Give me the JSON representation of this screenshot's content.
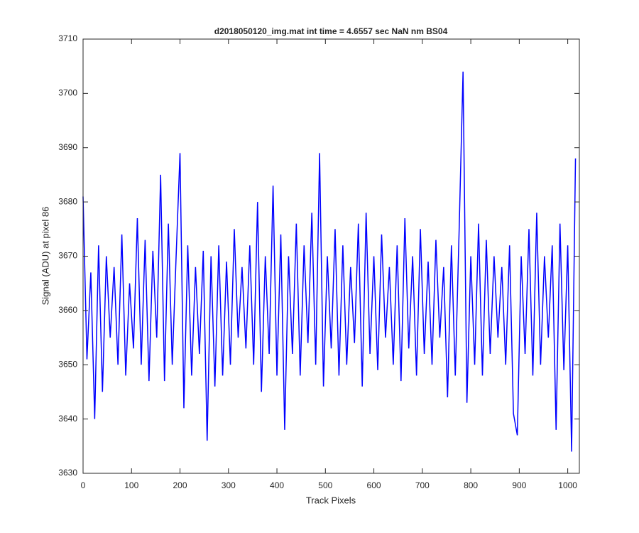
{
  "chart_data": {
    "type": "line",
    "title": "d2018050120_img.mat int time = 4.6557 sec  NaN nm BS04",
    "xlabel": "Track Pixels",
    "ylabel": "Signal (ADU) at pixel 86",
    "color": "#0000ff",
    "xlim": [
      0,
      1024
    ],
    "ylim": [
      3630,
      3710
    ],
    "xticks": [
      0,
      100,
      200,
      300,
      400,
      500,
      600,
      700,
      800,
      900,
      1000
    ],
    "yticks": [
      3630,
      3640,
      3650,
      3660,
      3670,
      3680,
      3690,
      3700,
      3710
    ],
    "x": [
      0,
      8,
      16,
      24,
      32,
      40,
      48,
      56,
      64,
      72,
      80,
      88,
      96,
      104,
      112,
      120,
      128,
      136,
      144,
      152,
      160,
      168,
      176,
      184,
      192,
      200,
      208,
      216,
      224,
      232,
      240,
      248,
      256,
      264,
      272,
      280,
      288,
      296,
      304,
      312,
      320,
      328,
      336,
      344,
      352,
      360,
      368,
      376,
      384,
      392,
      400,
      408,
      416,
      424,
      432,
      440,
      448,
      456,
      464,
      472,
      480,
      488,
      496,
      504,
      512,
      520,
      528,
      536,
      544,
      552,
      560,
      568,
      576,
      584,
      592,
      600,
      608,
      616,
      624,
      632,
      640,
      648,
      656,
      664,
      672,
      680,
      688,
      696,
      704,
      712,
      720,
      728,
      736,
      744,
      752,
      760,
      768,
      776,
      784,
      792,
      800,
      808,
      816,
      824,
      832,
      840,
      848,
      856,
      864,
      872,
      880,
      888,
      896,
      904,
      912,
      920,
      928,
      936,
      944,
      952,
      960,
      968,
      976,
      984,
      992,
      1000,
      1008,
      1016
    ],
    "values": [
      3681,
      3651,
      3667,
      3640,
      3672,
      3645,
      3670,
      3655,
      3668,
      3650,
      3674,
      3648,
      3665,
      3653,
      3677,
      3650,
      3673,
      3647,
      3671,
      3655,
      3685,
      3647,
      3676,
      3650,
      3670,
      3689,
      3642,
      3672,
      3648,
      3668,
      3652,
      3671,
      3636,
      3670,
      3646,
      3672,
      3648,
      3669,
      3650,
      3675,
      3655,
      3668,
      3653,
      3672,
      3650,
      3680,
      3645,
      3670,
      3652,
      3683,
      3648,
      3674,
      3638,
      3670,
      3652,
      3676,
      3648,
      3672,
      3654,
      3678,
      3650,
      3689,
      3646,
      3670,
      3653,
      3675,
      3648,
      3672,
      3650,
      3668,
      3654,
      3676,
      3646,
      3678,
      3652,
      3670,
      3649,
      3674,
      3655,
      3668,
      3650,
      3672,
      3647,
      3677,
      3653,
      3670,
      3648,
      3675,
      3652,
      3669,
      3650,
      3673,
      3655,
      3668,
      3644,
      3672,
      3648,
      3675,
      3704,
      3643,
      3670,
      3650,
      3676,
      3648,
      3673,
      3652,
      3670,
      3655,
      3668,
      3650,
      3672,
      3641,
      3637,
      3670,
      3652,
      3675,
      3648,
      3678,
      3650,
      3670,
      3655,
      3672,
      3638,
      3676,
      3649,
      3672,
      3634,
      3688
    ]
  }
}
